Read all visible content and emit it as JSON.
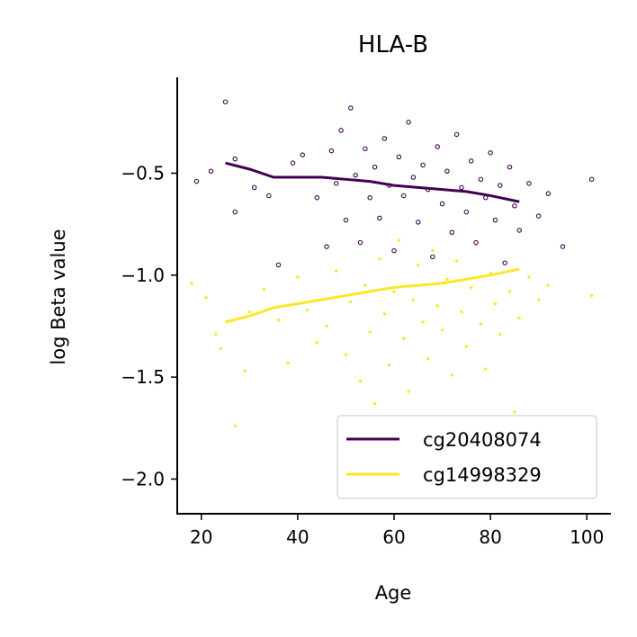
{
  "chart_data": {
    "type": "scatter",
    "title": "HLA-B",
    "xlabel": "Age",
    "ylabel": "log Beta value",
    "xlim": [
      15,
      105
    ],
    "ylim": [
      -2.17,
      -0.03
    ],
    "xticks": [
      20,
      40,
      60,
      80,
      100
    ],
    "xtick_labels": [
      "20",
      "40",
      "60",
      "80",
      "100"
    ],
    "yticks": [
      -0.5,
      -1.0,
      -1.5,
      -2.0
    ],
    "ytick_labels": [
      "−0.5",
      "−1.0",
      "−1.5",
      "−2.0"
    ],
    "grid": false,
    "legend_position": "lower-right",
    "series": [
      {
        "name": "cg20408074",
        "color": "#440154",
        "marker": "dot",
        "trend_line": {
          "x": [
            25,
            30,
            35,
            40,
            45,
            50,
            55,
            60,
            65,
            70,
            75,
            80,
            86
          ],
          "y": [
            -0.45,
            -0.48,
            -0.52,
            -0.52,
            -0.52,
            -0.53,
            -0.54,
            -0.56,
            -0.57,
            -0.58,
            -0.59,
            -0.61,
            -0.64
          ]
        },
        "points": [
          [
            19,
            -0.54
          ],
          [
            22,
            -0.49
          ],
          [
            25,
            -0.15
          ],
          [
            27,
            -0.43
          ],
          [
            27,
            -0.69
          ],
          [
            31,
            -0.57
          ],
          [
            34,
            -0.61
          ],
          [
            36,
            -0.95
          ],
          [
            39,
            -0.45
          ],
          [
            41,
            -0.41
          ],
          [
            44,
            -0.62
          ],
          [
            46,
            -0.86
          ],
          [
            47,
            -0.39
          ],
          [
            48,
            -0.55
          ],
          [
            49,
            -0.29
          ],
          [
            50,
            -0.73
          ],
          [
            51,
            -0.18
          ],
          [
            52,
            -0.51
          ],
          [
            53,
            -0.84
          ],
          [
            54,
            -0.38
          ],
          [
            55,
            -0.62
          ],
          [
            56,
            -0.47
          ],
          [
            57,
            -0.72
          ],
          [
            58,
            -0.33
          ],
          [
            59,
            -0.56
          ],
          [
            60,
            -0.88
          ],
          [
            61,
            -0.42
          ],
          [
            62,
            -0.61
          ],
          [
            63,
            -0.25
          ],
          [
            64,
            -0.52
          ],
          [
            65,
            -0.74
          ],
          [
            66,
            -0.46
          ],
          [
            67,
            -0.58
          ],
          [
            68,
            -0.91
          ],
          [
            69,
            -0.37
          ],
          [
            70,
            -0.65
          ],
          [
            71,
            -0.49
          ],
          [
            72,
            -0.79
          ],
          [
            73,
            -0.31
          ],
          [
            74,
            -0.57
          ],
          [
            75,
            -0.69
          ],
          [
            76,
            -0.44
          ],
          [
            77,
            -0.84
          ],
          [
            78,
            -0.53
          ],
          [
            79,
            -0.62
          ],
          [
            80,
            -0.4
          ],
          [
            81,
            -0.73
          ],
          [
            82,
            -0.56
          ],
          [
            83,
            -0.94
          ],
          [
            84,
            -0.47
          ],
          [
            85,
            -0.66
          ],
          [
            86,
            -0.78
          ],
          [
            88,
            -0.55
          ],
          [
            90,
            -0.71
          ],
          [
            92,
            -0.6
          ],
          [
            95,
            -0.86
          ],
          [
            101,
            -0.53
          ]
        ]
      },
      {
        "name": "cg14998329",
        "color": "#fde725",
        "marker": "dot",
        "trend_line": {
          "x": [
            25,
            30,
            35,
            40,
            45,
            50,
            55,
            60,
            65,
            70,
            75,
            80,
            86
          ],
          "y": [
            -1.23,
            -1.2,
            -1.16,
            -1.14,
            -1.12,
            -1.1,
            -1.08,
            -1.06,
            -1.05,
            -1.04,
            -1.02,
            -1.0,
            -0.97
          ]
        },
        "points": [
          [
            18,
            -1.04
          ],
          [
            21,
            -1.11
          ],
          [
            23,
            -1.29
          ],
          [
            24,
            -1.36
          ],
          [
            27,
            -1.74
          ],
          [
            29,
            -1.47
          ],
          [
            30,
            -1.18
          ],
          [
            33,
            -1.07
          ],
          [
            36,
            -1.22
          ],
          [
            38,
            -1.43
          ],
          [
            40,
            -1.01
          ],
          [
            42,
            -1.17
          ],
          [
            44,
            -1.33
          ],
          [
            46,
            -1.25
          ],
          [
            48,
            -0.98
          ],
          [
            50,
            -1.39
          ],
          [
            51,
            -1.13
          ],
          [
            53,
            -1.52
          ],
          [
            54,
            -1.05
          ],
          [
            55,
            -1.28
          ],
          [
            56,
            -1.63
          ],
          [
            57,
            -0.92
          ],
          [
            58,
            -1.19
          ],
          [
            59,
            -1.44
          ],
          [
            60,
            -1.08
          ],
          [
            61,
            -0.83
          ],
          [
            62,
            -1.31
          ],
          [
            63,
            -1.57
          ],
          [
            64,
            -1.12
          ],
          [
            65,
            -0.95
          ],
          [
            66,
            -1.23
          ],
          [
            67,
            -1.41
          ],
          [
            68,
            -0.88
          ],
          [
            69,
            -1.15
          ],
          [
            70,
            -1.27
          ],
          [
            71,
            -1.02
          ],
          [
            72,
            -1.49
          ],
          [
            73,
            -0.93
          ],
          [
            74,
            -1.18
          ],
          [
            75,
            -1.35
          ],
          [
            76,
            -1.06
          ],
          [
            77,
            -0.85
          ],
          [
            78,
            -1.24
          ],
          [
            79,
            -1.46
          ],
          [
            80,
            -0.99
          ],
          [
            81,
            -1.14
          ],
          [
            82,
            -1.29
          ],
          [
            84,
            -1.08
          ],
          [
            85,
            -1.67
          ],
          [
            86,
            -1.21
          ],
          [
            88,
            -1.01
          ],
          [
            90,
            -1.12
          ],
          [
            92,
            -1.05
          ],
          [
            101,
            -1.1
          ]
        ]
      }
    ]
  }
}
